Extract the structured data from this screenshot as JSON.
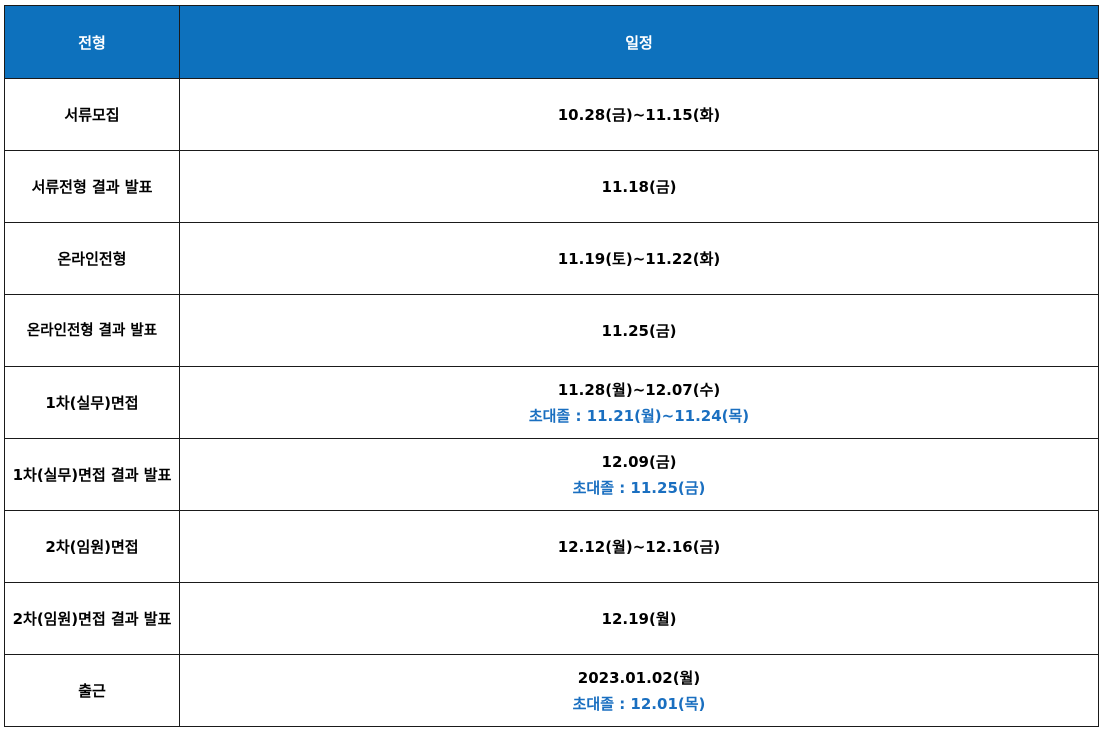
{
  "header": {
    "col1": "전형",
    "col2": "일정"
  },
  "rows": [
    {
      "stage": "서류모집",
      "schedule": "10.28(금)~11.15(화)",
      "note": ""
    },
    {
      "stage": "서류전형 결과 발표",
      "schedule": "11.18(금)",
      "note": ""
    },
    {
      "stage": "온라인전형",
      "schedule": "11.19(토)~11.22(화)",
      "note": ""
    },
    {
      "stage": "온라인전형 결과 발표",
      "schedule": "11.25(금)",
      "note": ""
    },
    {
      "stage": "1차(실무)면접",
      "schedule": "11.28(월)~12.07(수)",
      "note": "초대졸 : 11.21(월)~11.24(목)"
    },
    {
      "stage": "1차(실무)면접 결과 발표",
      "schedule": "12.09(금)",
      "note": "초대졸 : 11.25(금)"
    },
    {
      "stage": "2차(임원)면접",
      "schedule": "12.12(월)~12.16(금)",
      "note": ""
    },
    {
      "stage": "2차(임원)면접 결과 발표",
      "schedule": "12.19(월)",
      "note": ""
    },
    {
      "stage": "출근",
      "schedule": "2023.01.02(월)",
      "note": "초대졸 : 12.01(목)"
    }
  ],
  "colors": {
    "header_bg": "#0d71bd",
    "header_text": "#ffffff",
    "note_text": "#1a6fc0"
  }
}
